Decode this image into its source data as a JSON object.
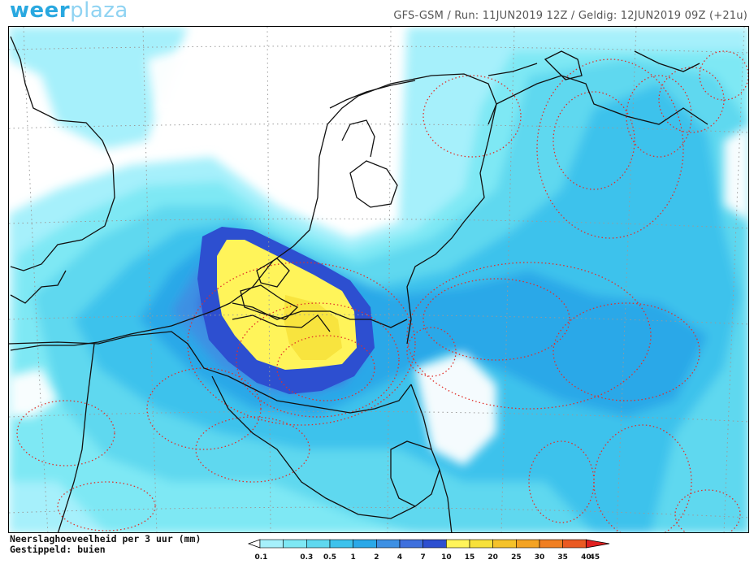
{
  "header": {
    "logo_part1": "weer",
    "logo_part2": "plaza",
    "model": "GFS-GSM",
    "run": "Run: 11JUN2019 12Z",
    "valid": "Geldig: 12JUN2019 09Z (+21u)"
  },
  "caption": {
    "line1": "Neerslaghoeveelheid per 3 uur (mm)",
    "line2": "Gestippeld: buien"
  },
  "legend": {
    "unit": "mm",
    "steps": [
      {
        "label": "0.1",
        "color": "#a6f0fb"
      },
      {
        "label": "0.3",
        "color": "#7ee8f4"
      },
      {
        "label": "0.5",
        "color": "#5fd8ef"
      },
      {
        "label": "1",
        "color": "#3dc2ec"
      },
      {
        "label": "2",
        "color": "#2aa8e8"
      },
      {
        "label": "4",
        "color": "#3e90e3"
      },
      {
        "label": "7",
        "color": "#3f70dd"
      },
      {
        "label": "10",
        "color": "#2d4fd0"
      },
      {
        "label": "15",
        "color": "#fff45a"
      },
      {
        "label": "20",
        "color": "#f7e13a"
      },
      {
        "label": "25",
        "color": "#f5c22a"
      },
      {
        "label": "30",
        "color": "#f4a323"
      },
      {
        "label": "35",
        "color": "#f07f22"
      },
      {
        "label": "40",
        "color": "#ea5a22"
      },
      {
        "label": "45",
        "color": "#e02020"
      }
    ]
  }
}
